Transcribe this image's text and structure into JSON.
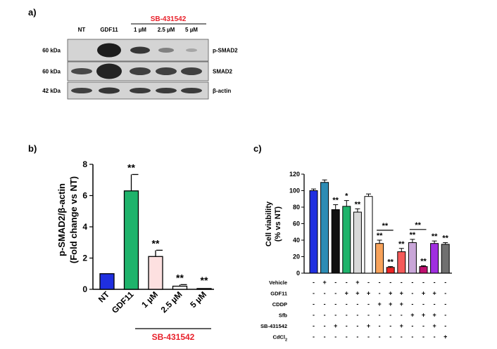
{
  "panel_a": {
    "label": "a)",
    "treatment_header": "SB-431542",
    "lane_labels": [
      "NT",
      "GDF11",
      "1 µM",
      "2.5 µM",
      "5 µM"
    ],
    "blots": [
      {
        "mw": "60 kDa",
        "name": "p-SMAD2"
      },
      {
        "mw": "60 kDa",
        "name": "SMAD2"
      },
      {
        "mw": "42 kDa",
        "name": "β-actin"
      }
    ],
    "colors": {
      "header": "#e8202a",
      "blot_bg": "#d4d4d4",
      "band": "#1a1a1a"
    }
  },
  "chart_data": [
    {
      "panel": "b)",
      "type": "bar",
      "ylabel_line1": "p-SMAD2/β-actin",
      "ylabel_line2": "(Fold change vs NT)",
      "categories": [
        "NT",
        "GDF11",
        "1 µM",
        "2.5 µM",
        "5 µM"
      ],
      "values": [
        1.0,
        6.3,
        2.1,
        0.2,
        0.05
      ],
      "errors": [
        0,
        1.05,
        0.4,
        0.1,
        0
      ],
      "colors": [
        "#1f2fe0",
        "#1fb36b",
        "#fde0e0",
        "#ffffff",
        "#ffffff"
      ],
      "significance": [
        "",
        "**",
        "**",
        "**",
        "**"
      ],
      "yticks": [
        "0",
        "2",
        "4",
        "6",
        "8"
      ],
      "ylim": [
        0,
        8
      ],
      "group_label": "SB-431542"
    },
    {
      "panel": "c)",
      "type": "bar",
      "ylabel_line1": "Cell viability",
      "ylabel_line2": "(% vs NT)",
      "values": [
        100,
        110,
        77,
        81,
        74,
        93,
        36,
        7,
        26,
        37,
        8,
        36,
        35
      ],
      "errors": [
        2,
        3,
        6,
        7,
        4,
        3,
        4,
        1,
        4,
        4,
        1,
        3,
        2
      ],
      "colors": [
        "#1f2fe0",
        "#2d8cb4",
        "#111111",
        "#1fb36b",
        "#d8d8d8",
        "#ffffff",
        "#f7a25a",
        "#ec2323",
        "#f55a5a",
        "#c9a6d8",
        "#c0106f",
        "#a02ee0",
        "#707070"
      ],
      "significance": [
        "",
        "",
        "**",
        "*",
        "**",
        "",
        "**",
        "**",
        "**",
        "**",
        "**",
        "**",
        "**"
      ],
      "brackets": [
        {
          "from": 6,
          "to": 7,
          "label": "**"
        },
        {
          "from": 9,
          "to": 10,
          "label": "**"
        }
      ],
      "yticks": [
        "0",
        "20",
        "40",
        "60",
        "80",
        "100",
        "120"
      ],
      "ylim": [
        0,
        120
      ],
      "conditions": [
        {
          "name": "Vehicle",
          "signs": [
            "-",
            "+",
            "-",
            "-",
            "+",
            "-",
            "-",
            "-",
            "-",
            "-",
            "-",
            "-",
            "-"
          ]
        },
        {
          "name": "GDF11",
          "signs": [
            "-",
            "-",
            "-",
            "+",
            "+",
            "+",
            "-",
            "+",
            "+",
            "-",
            "+",
            "+",
            "-"
          ]
        },
        {
          "name": "CDDP",
          "signs": [
            "-",
            "-",
            "-",
            "-",
            "-",
            "-",
            "+",
            "+",
            "+",
            "-",
            "-",
            "-",
            "-"
          ]
        },
        {
          "name": "Sfb",
          "signs": [
            "-",
            "-",
            "-",
            "-",
            "-",
            "-",
            "-",
            "-",
            "-",
            "+",
            "+",
            "+",
            "-"
          ]
        },
        {
          "name": "SB-431542",
          "signs": [
            "-",
            "-",
            "+",
            "-",
            "-",
            "+",
            "-",
            "-",
            "+",
            "-",
            "-",
            "+",
            "-"
          ]
        },
        {
          "name": "CdCl2",
          "signs": [
            "-",
            "-",
            "-",
            "-",
            "-",
            "-",
            "-",
            "-",
            "-",
            "-",
            "-",
            "-",
            "+"
          ]
        }
      ]
    }
  ]
}
